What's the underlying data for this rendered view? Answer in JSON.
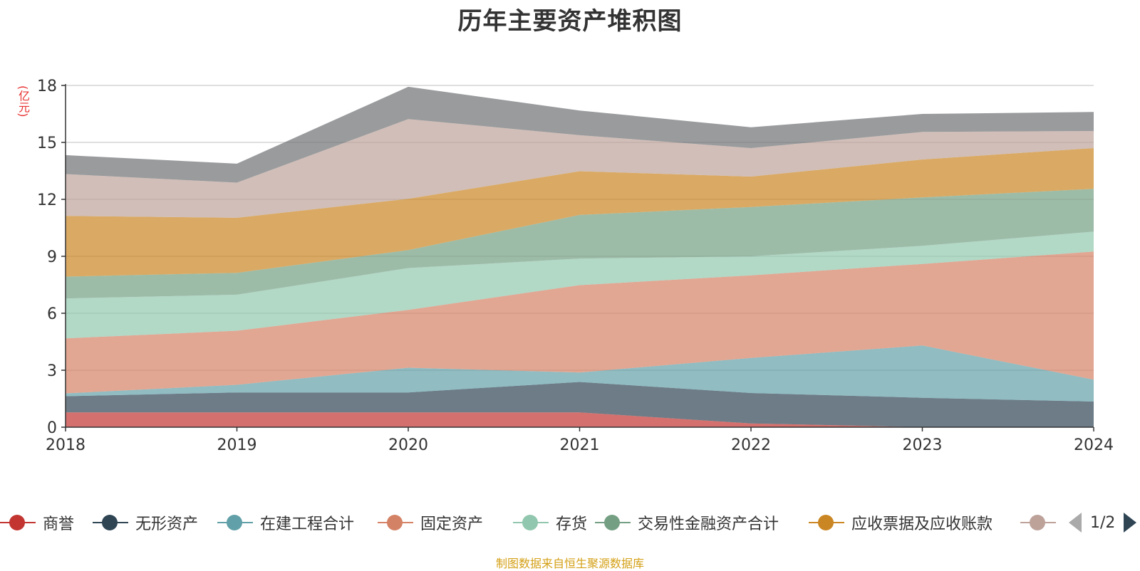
{
  "chart_data": {
    "type": "area",
    "stacked": true,
    "title": "历年主要资产堆积图",
    "ylabel": "(亿元)",
    "categories": [
      "2018",
      "2019",
      "2020",
      "2021",
      "2022",
      "2023",
      "2024"
    ],
    "ylim": [
      0,
      18
    ],
    "yticks": [
      0,
      3,
      6,
      9,
      12,
      15,
      18
    ],
    "grid": true,
    "legend_position": "bottom",
    "series": [
      {
        "name": "商誉",
        "color": "#c23531",
        "values": [
          0.78,
          0.78,
          0.78,
          0.78,
          0.2,
          0.0,
          0.0
        ]
      },
      {
        "name": "无形资产",
        "color": "#2f4554",
        "values": [
          0.85,
          1.05,
          1.05,
          1.6,
          1.6,
          1.55,
          1.35
        ]
      },
      {
        "name": "在建工程合计",
        "color": "#61a0a8",
        "values": [
          0.15,
          0.4,
          1.3,
          0.5,
          1.85,
          2.75,
          1.15
        ]
      },
      {
        "name": "固定资产",
        "color": "#d48265",
        "values": [
          2.9,
          2.85,
          3.05,
          4.6,
          4.35,
          4.3,
          6.75
        ]
      },
      {
        "name": "存货",
        "color": "#91c7ae",
        "values": [
          2.1,
          1.9,
          2.2,
          1.4,
          1.0,
          0.95,
          1.05
        ]
      },
      {
        "name": "交易性金融资产合计",
        "color": "#749f83",
        "values": [
          1.15,
          1.15,
          0.95,
          2.3,
          2.6,
          2.55,
          2.25
        ]
      },
      {
        "name": "应收票据及应收账款",
        "color": "#ca8622",
        "values": [
          3.2,
          2.9,
          2.7,
          2.3,
          1.6,
          2.0,
          2.15
        ]
      },
      {
        "name": "",
        "color": "#bda29a",
        "values": [
          2.2,
          1.85,
          4.2,
          1.9,
          1.5,
          1.45,
          0.9
        ]
      },
      {
        "name": "",
        "color": "#6e7074",
        "values": [
          1.0,
          1.0,
          1.7,
          1.3,
          1.1,
          0.95,
          1.0
        ]
      }
    ]
  },
  "legend": {
    "visible_count": 8,
    "page_indicator": "1/2"
  },
  "source_note": "制图数据来自恒生聚源数据库"
}
